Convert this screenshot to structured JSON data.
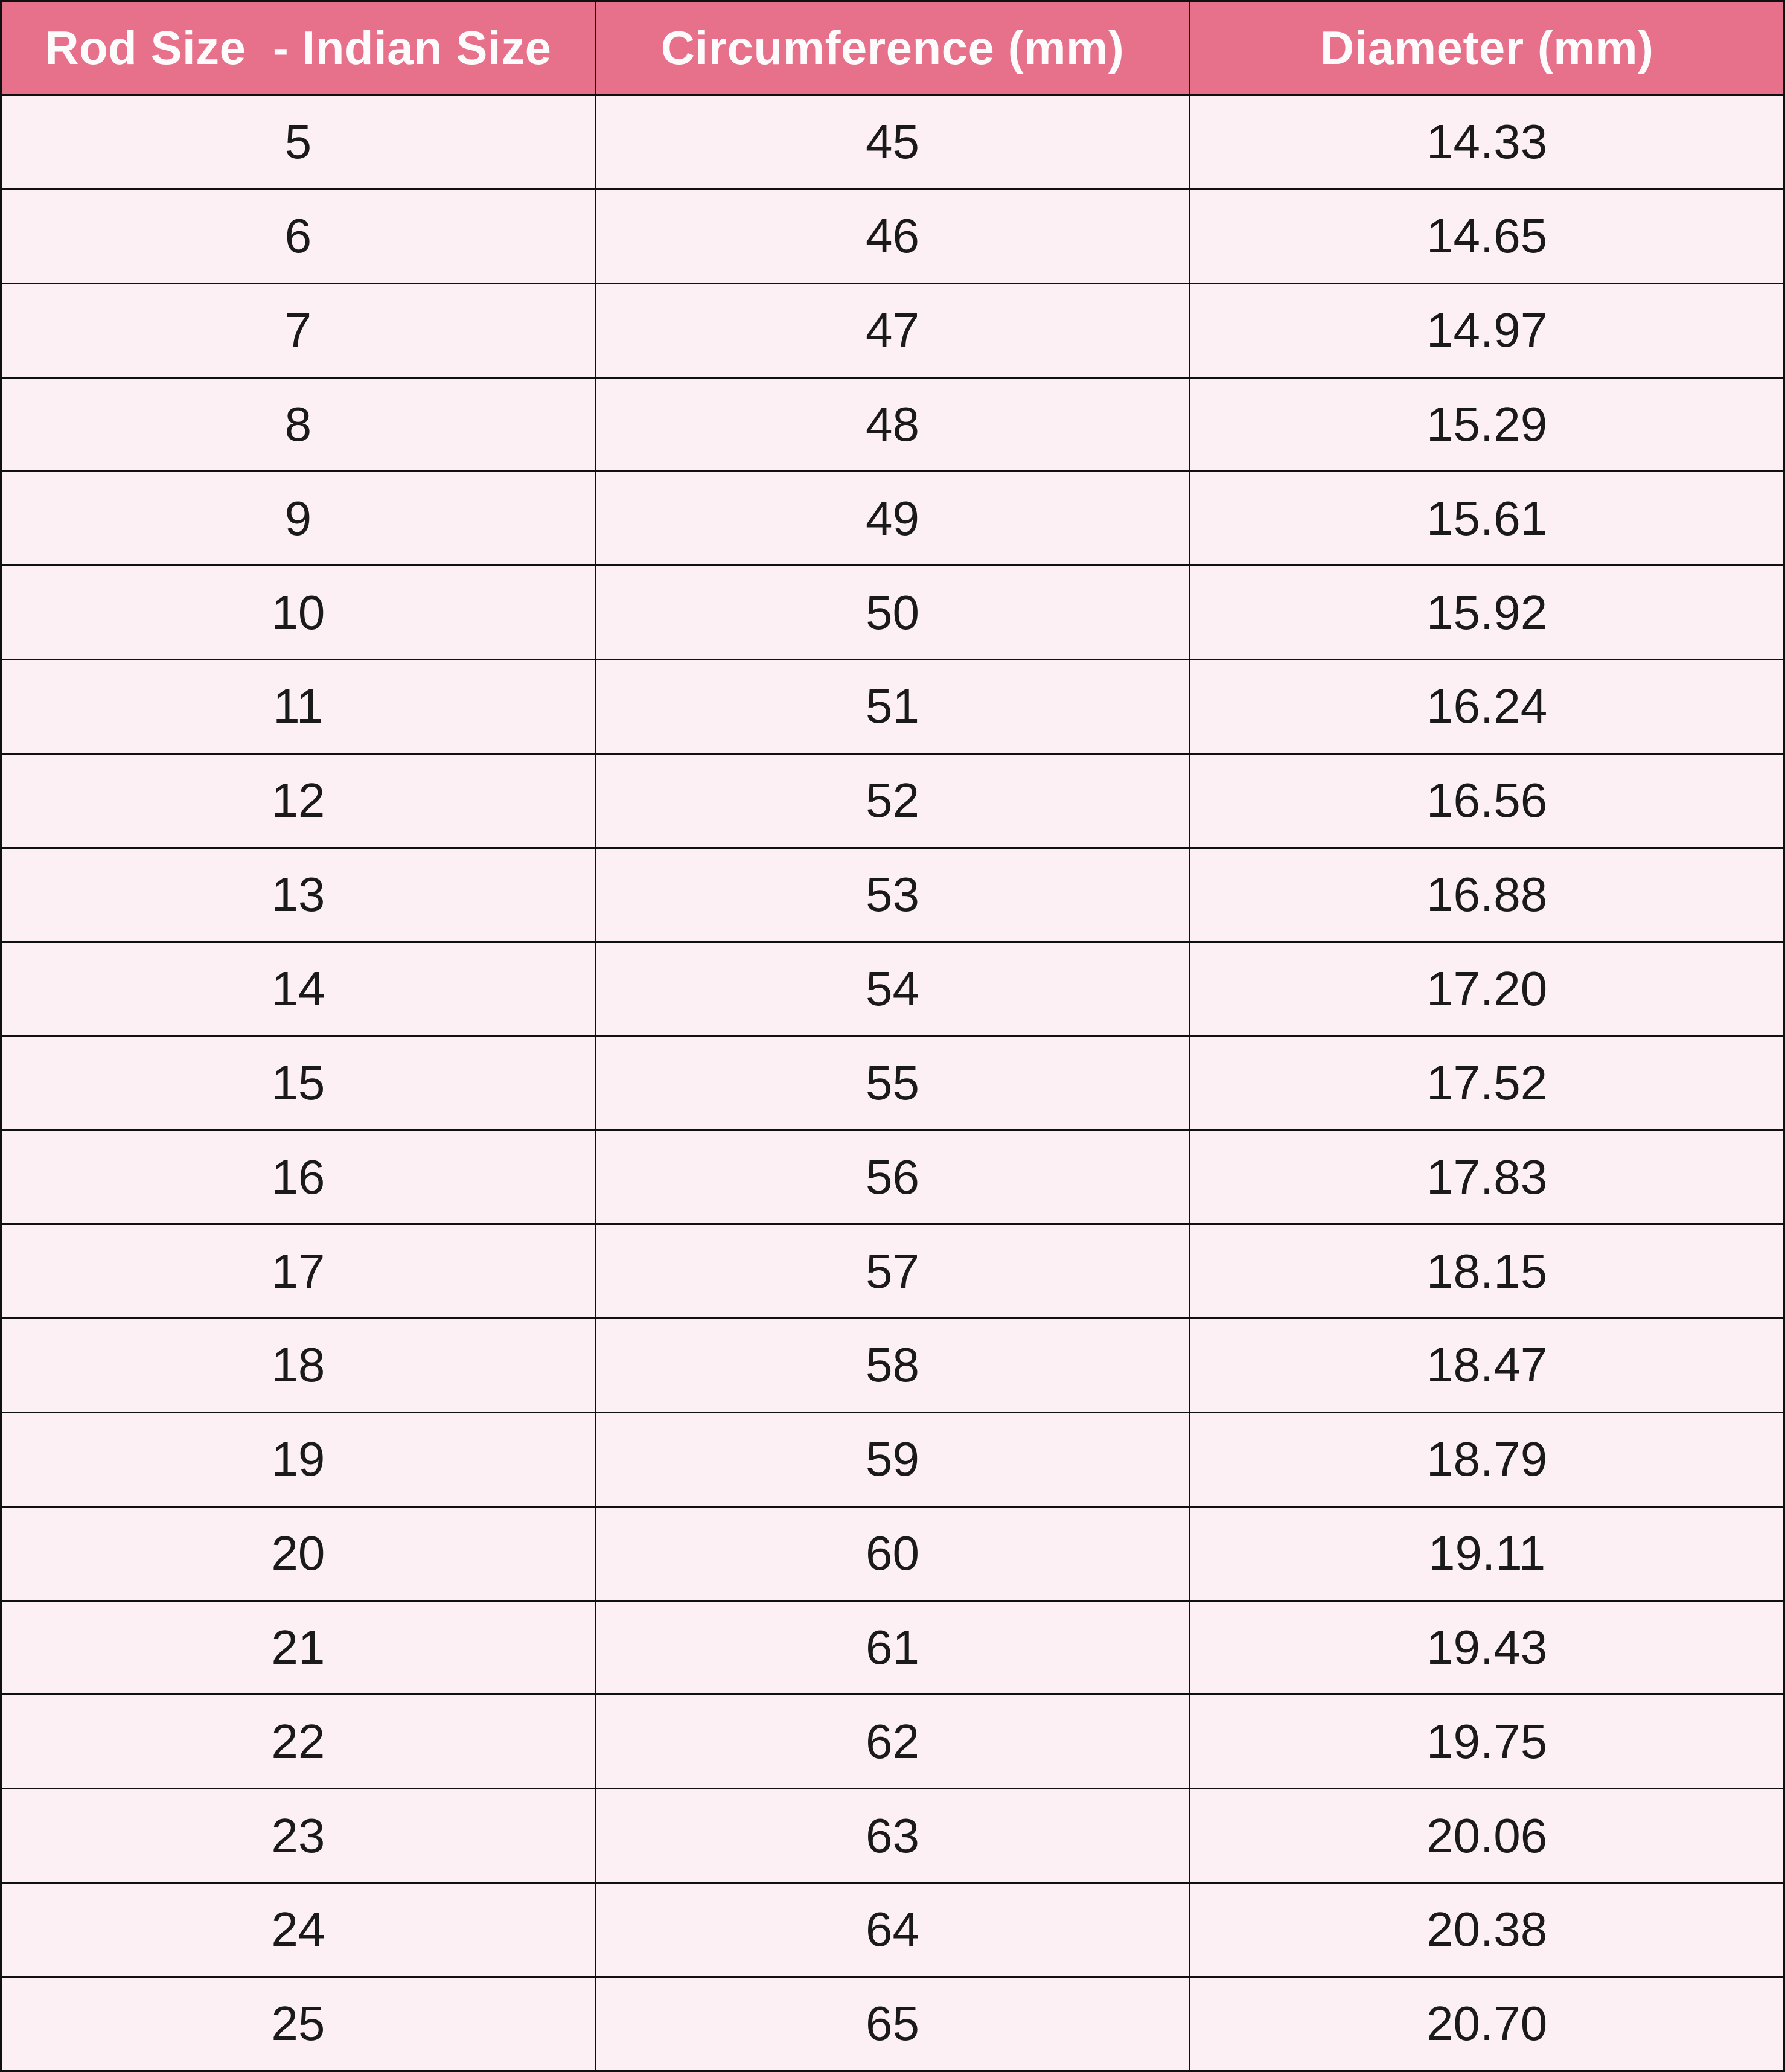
{
  "table": {
    "headers": [
      "Rod Size  - Indian Size",
      "Circumference (mm)",
      "Diameter (mm)"
    ],
    "rows": [
      [
        "5",
        "45",
        "14.33"
      ],
      [
        "6",
        "46",
        "14.65"
      ],
      [
        "7",
        "47",
        "14.97"
      ],
      [
        "8",
        "48",
        "15.29"
      ],
      [
        "9",
        "49",
        "15.61"
      ],
      [
        "10",
        "50",
        "15.92"
      ],
      [
        "11",
        "51",
        "16.24"
      ],
      [
        "12",
        "52",
        "16.56"
      ],
      [
        "13",
        "53",
        "16.88"
      ],
      [
        "14",
        "54",
        "17.20"
      ],
      [
        "15",
        "55",
        "17.52"
      ],
      [
        "16",
        "56",
        "17.83"
      ],
      [
        "17",
        "57",
        "18.15"
      ],
      [
        "18",
        "58",
        "18.47"
      ],
      [
        "19",
        "59",
        "18.79"
      ],
      [
        "20",
        "60",
        "19.11"
      ],
      [
        "21",
        "61",
        "19.43"
      ],
      [
        "22",
        "62",
        "19.75"
      ],
      [
        "23",
        "63",
        "20.06"
      ],
      [
        "24",
        "64",
        "20.38"
      ],
      [
        "25",
        "65",
        "20.70"
      ]
    ]
  },
  "chart_data": {
    "type": "table",
    "title": "",
    "columns": [
      "Rod Size  - Indian Size",
      "Circumference (mm)",
      "Diameter (mm)"
    ],
    "rod_size_indian": [
      5,
      6,
      7,
      8,
      9,
      10,
      11,
      12,
      13,
      14,
      15,
      16,
      17,
      18,
      19,
      20,
      21,
      22,
      23,
      24,
      25
    ],
    "circumference_mm": [
      45,
      46,
      47,
      48,
      49,
      50,
      51,
      52,
      53,
      54,
      55,
      56,
      57,
      58,
      59,
      60,
      61,
      62,
      63,
      64,
      65
    ],
    "diameter_mm": [
      14.33,
      14.65,
      14.97,
      15.29,
      15.61,
      15.92,
      16.24,
      16.56,
      16.88,
      17.2,
      17.52,
      17.83,
      18.15,
      18.47,
      18.79,
      19.11,
      19.43,
      19.75,
      20.06,
      20.38,
      20.7
    ]
  },
  "colors": {
    "header_bg": "#e7718b",
    "header_text": "#fefbfc",
    "row_bg": "#fcf0f4",
    "border": "#101010",
    "cell_text": "#1a1a1a"
  }
}
